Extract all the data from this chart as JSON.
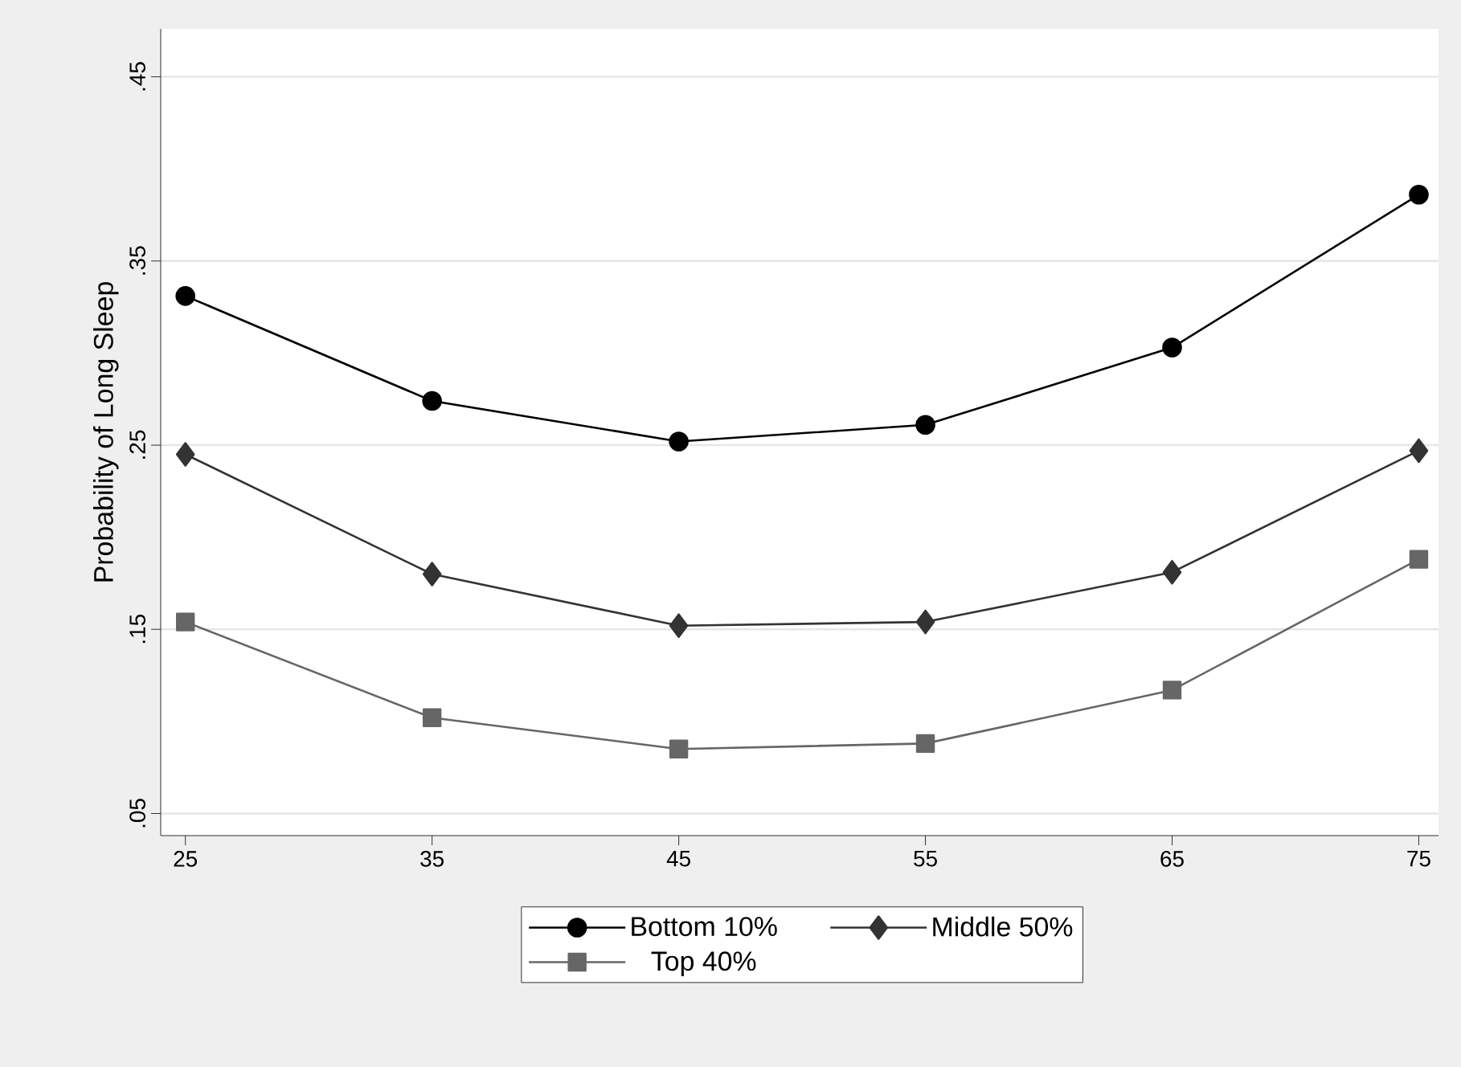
{
  "chart_data": {
    "type": "line",
    "ylabel": "Probability of Long Sleep",
    "x": [
      25,
      35,
      45,
      55,
      65,
      75
    ],
    "series": [
      {
        "name": "Bottom 10%",
        "color": "#000000",
        "marker": "circle",
        "values": [
          0.331,
          0.274,
          0.252,
          0.261,
          0.303,
          0.386
        ]
      },
      {
        "name": "Middle 50%",
        "color": "#333333",
        "marker": "diamond",
        "values": [
          0.245,
          0.18,
          0.152,
          0.154,
          0.181,
          0.247
        ]
      },
      {
        "name": "Top 40%",
        "color": "#666666",
        "marker": "square",
        "values": [
          0.154,
          0.102,
          0.085,
          0.088,
          0.117,
          0.188
        ]
      }
    ],
    "xlim": [
      24,
      75.8
    ],
    "ylim": [
      0.038,
      0.476
    ],
    "xticks": [
      25,
      35,
      45,
      55,
      65,
      75
    ],
    "yticks": [
      {
        "value": 0.05,
        "label": ".05"
      },
      {
        "value": 0.15,
        "label": ".15"
      },
      {
        "value": 0.25,
        "label": ".25"
      },
      {
        "value": 0.35,
        "label": ".35"
      },
      {
        "value": 0.45,
        "label": ".45"
      }
    ],
    "grid": "y",
    "legend": "bottom",
    "line_style": "solid"
  }
}
